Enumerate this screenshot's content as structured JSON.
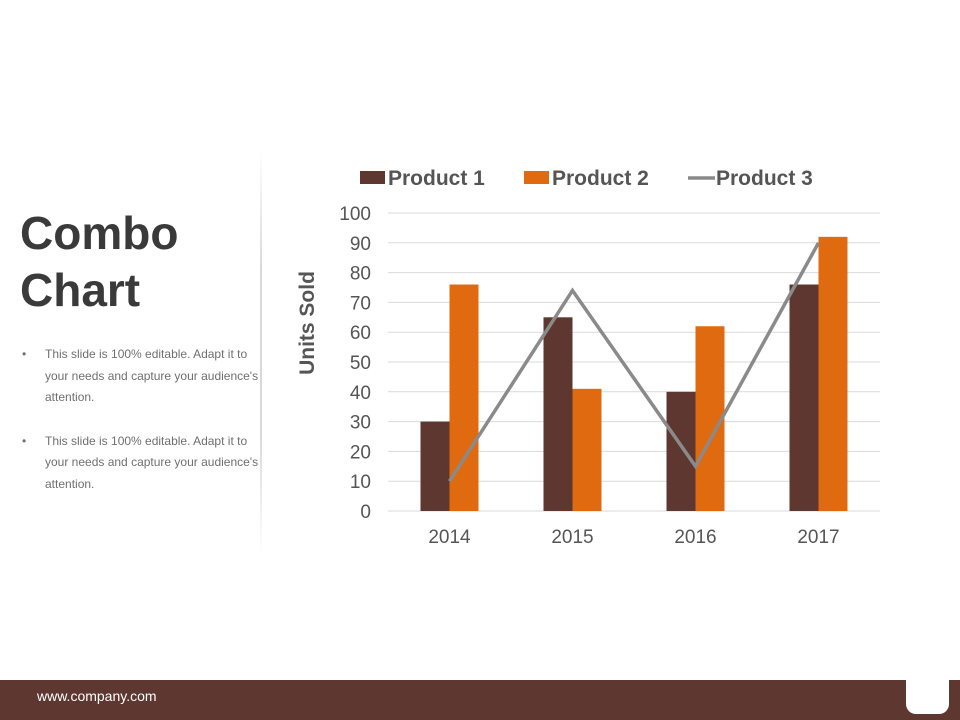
{
  "slide": {
    "title_line1": "Combo",
    "title_line2": "Chart",
    "bullets": [
      "This slide is 100% editable. Adapt it to your needs and capture your audience's attention.",
      "This slide is 100% editable. Adapt it to your needs and capture your audience's attention."
    ],
    "footer_url": "www.company.com"
  },
  "colors": {
    "product1": "#5e3731",
    "product2": "#e06a10",
    "product3": "#8a8a8a",
    "gridline": "#d9d9d9",
    "footer": "#5e3731"
  },
  "chart_data": {
    "type": "bar",
    "categories": [
      "2014",
      "2015",
      "2016",
      "2017"
    ],
    "series": [
      {
        "name": "Product 1",
        "kind": "bar",
        "values": [
          30,
          65,
          40,
          76
        ]
      },
      {
        "name": "Product 2",
        "kind": "bar",
        "values": [
          76,
          41,
          62,
          92
        ]
      },
      {
        "name": "Product 3",
        "kind": "line",
        "values": [
          10,
          74,
          15,
          90
        ]
      }
    ],
    "title": "",
    "xlabel": "",
    "ylabel": "Units Sold",
    "ylim": [
      0,
      100
    ],
    "yticks": [
      0,
      10,
      20,
      30,
      40,
      50,
      60,
      70,
      80,
      90,
      100
    ],
    "grid": true,
    "legend": "top"
  }
}
